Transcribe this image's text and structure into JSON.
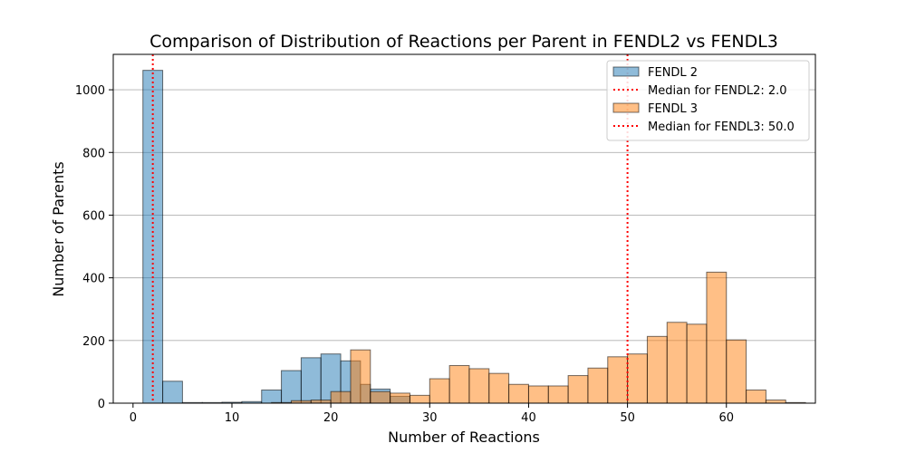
{
  "chart_data": {
    "type": "bar",
    "title": "Comparison of Distribution of Reactions per Parent in FENDL2 vs FENDL3",
    "xlabel": "Number of Reactions",
    "ylabel": "Number of Parents",
    "xlim": [
      -2,
      69
    ],
    "ylim": [
      0,
      1113
    ],
    "xticks": [
      0,
      10,
      20,
      30,
      40,
      50,
      60
    ],
    "yticks": [
      0,
      200,
      400,
      600,
      800,
      1000
    ],
    "grid": "y",
    "legend_position": "top-right",
    "series": [
      {
        "name": "FENDL 2",
        "color": "#1f77b4",
        "bins": [
          [
            1,
            3,
            1062
          ],
          [
            3,
            5,
            70
          ],
          [
            5,
            7,
            2
          ],
          [
            7,
            9,
            2
          ],
          [
            9,
            11,
            3
          ],
          [
            11,
            13,
            5
          ],
          [
            13,
            15,
            42
          ],
          [
            15,
            17,
            104
          ],
          [
            17,
            19,
            145
          ],
          [
            19,
            21,
            157
          ],
          [
            21,
            23,
            135
          ],
          [
            23,
            24,
            60
          ],
          [
            24,
            26,
            45
          ],
          [
            26,
            28,
            22
          ]
        ]
      },
      {
        "name": "FENDL 3",
        "color": "#ff7f0e",
        "bins": [
          [
            14,
            16,
            2
          ],
          [
            16,
            18,
            8
          ],
          [
            18,
            20,
            10
          ],
          [
            20,
            22,
            37
          ],
          [
            22,
            24,
            170
          ],
          [
            24,
            26,
            37
          ],
          [
            26,
            28,
            32
          ],
          [
            28,
            30,
            25
          ],
          [
            30,
            32,
            78
          ],
          [
            32,
            34,
            120
          ],
          [
            34,
            36,
            110
          ],
          [
            36,
            38,
            95
          ],
          [
            38,
            40,
            60
          ],
          [
            40,
            42,
            55
          ],
          [
            42,
            44,
            55
          ],
          [
            44,
            46,
            88
          ],
          [
            46,
            48,
            112
          ],
          [
            48,
            50,
            148
          ],
          [
            50,
            52,
            157
          ],
          [
            52,
            54,
            213
          ],
          [
            54,
            56,
            258
          ],
          [
            56,
            58,
            252
          ],
          [
            58,
            60,
            418
          ],
          [
            60,
            62,
            202
          ],
          [
            62,
            64,
            42
          ],
          [
            64,
            66,
            10
          ],
          [
            66,
            68,
            2
          ]
        ]
      }
    ],
    "medians": [
      {
        "label": "Median for FENDL2: 2.0",
        "value": 2.0,
        "color": "#ff0000"
      },
      {
        "label": "Median for FENDL3: 50.0",
        "value": 50.0,
        "color": "#ff0000"
      }
    ],
    "legend": [
      {
        "label": "FENDL 2",
        "kind": "patch",
        "color": "#1f77b4"
      },
      {
        "label": "Median for FENDL2: 2.0",
        "kind": "line",
        "color": "#ff0000"
      },
      {
        "label": "FENDL 3",
        "kind": "patch",
        "color": "#ff7f0e"
      },
      {
        "label": "Median for FENDL3: 50.0",
        "kind": "line",
        "color": "#ff0000"
      }
    ]
  }
}
